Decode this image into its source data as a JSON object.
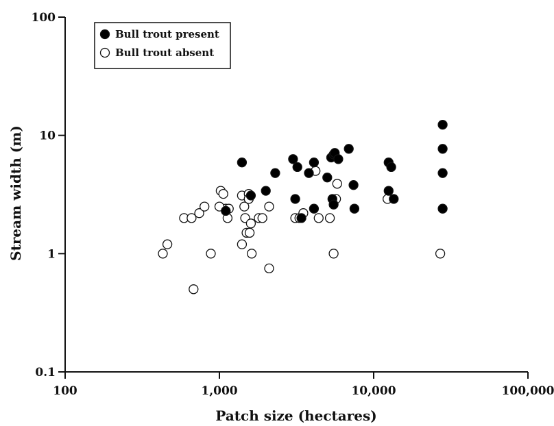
{
  "chart_data": {
    "type": "scatter",
    "xlabel": "Patch size (hectares)",
    "ylabel": "Stream width (m)",
    "xscale": "log",
    "yscale": "log",
    "xlim": [
      100,
      100000
    ],
    "ylim": [
      0.1,
      100
    ],
    "xticks": [
      100,
      1000,
      10000,
      100000
    ],
    "xtick_labels": [
      "100",
      "1,000",
      "10,000",
      "100,000"
    ],
    "yticks": [
      0.1,
      1,
      10,
      100
    ],
    "ytick_labels": [
      "0.1",
      "1",
      "10",
      "100"
    ],
    "legend_position": "top-left",
    "grid": false,
    "series": [
      {
        "name": "Bull trout present",
        "marker": "filled-circle",
        "color": "#000000",
        "x": [
          1400,
          1100,
          1600,
          2000,
          2300,
          3000,
          3200,
          3400,
          3100,
          3800,
          4100,
          4100,
          5000,
          5300,
          5500,
          5600,
          5900,
          5400,
          5500,
          6900,
          7400,
          7500,
          12500,
          13000,
          12500,
          13500,
          28000,
          28000,
          28000,
          28000
        ],
        "y": [
          5.9,
          2.3,
          3.1,
          3.4,
          4.8,
          6.3,
          5.4,
          2.0,
          2.9,
          4.8,
          5.9,
          2.4,
          4.4,
          6.5,
          6.9,
          7.1,
          6.3,
          2.9,
          2.6,
          7.7,
          3.8,
          2.4,
          5.9,
          5.4,
          3.4,
          2.9,
          12.3,
          7.7,
          4.8,
          2.4
        ]
      },
      {
        "name": "Bull trout absent",
        "marker": "open-circle",
        "color": "#ffffff",
        "x": [
          430,
          460,
          590,
          660,
          740,
          800,
          680,
          880,
          1020,
          1060,
          1100,
          1130,
          1150,
          1000,
          1400,
          1450,
          1470,
          1500,
          1570,
          1550,
          1550,
          1600,
          1620,
          1400,
          1800,
          1900,
          2100,
          2100,
          1550,
          3100,
          3300,
          3500,
          4200,
          4400,
          5200,
          5500,
          5700,
          5800,
          12300,
          27000
        ],
        "y": [
          1.0,
          1.2,
          2.0,
          2.0,
          2.2,
          2.5,
          0.5,
          1.0,
          3.4,
          3.2,
          2.4,
          2.0,
          2.4,
          2.5,
          3.1,
          2.5,
          2.0,
          1.5,
          1.5,
          2.9,
          3.2,
          1.8,
          1.0,
          1.2,
          2.0,
          2.0,
          2.5,
          0.75,
          2.9,
          2.0,
          2.0,
          2.2,
          5.0,
          2.0,
          2.0,
          1.0,
          2.9,
          3.9,
          2.9,
          1.0
        ]
      }
    ]
  }
}
